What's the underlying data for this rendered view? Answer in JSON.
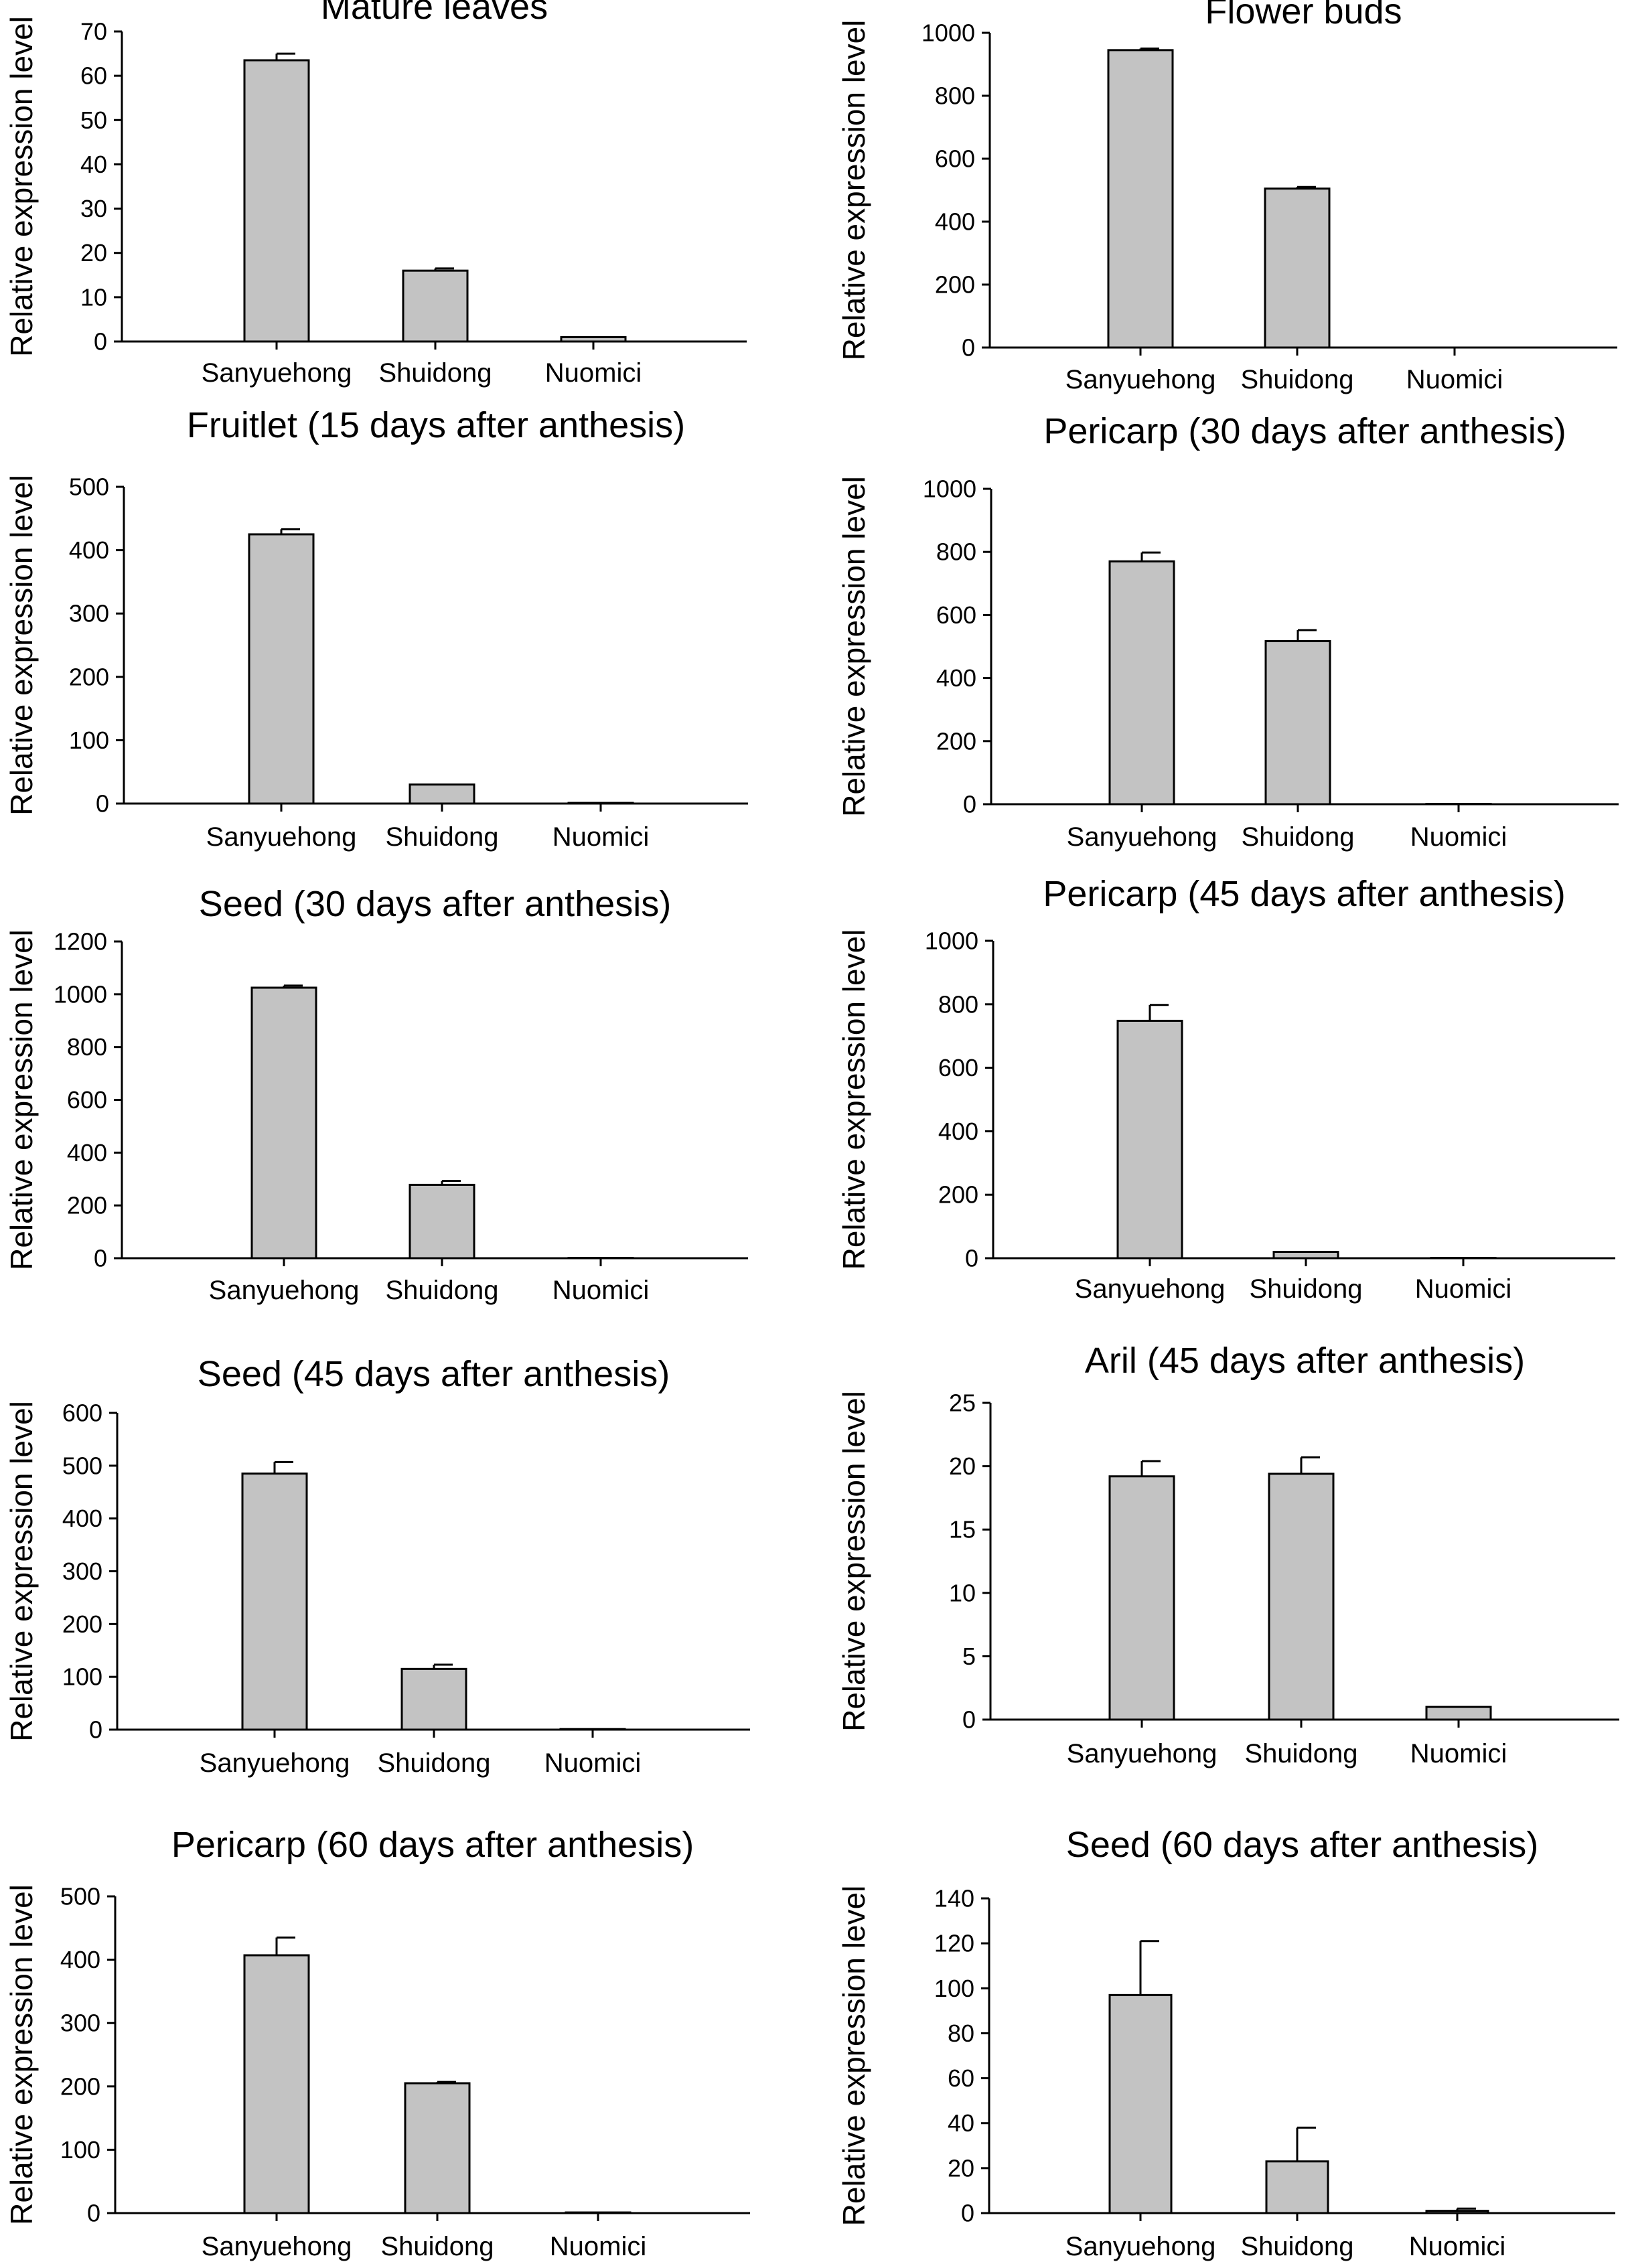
{
  "chart_data": [
    {
      "type": "bar",
      "title": "Mature leaves",
      "ylabel": "Relative expression level",
      "categories": [
        "Sanyuehong",
        "Shuidong",
        "Nuomici"
      ],
      "values": [
        63.5,
        16,
        1
      ],
      "errors": [
        1.5,
        0.5,
        0
      ],
      "ylim": [
        0,
        70
      ],
      "yticks": [
        0,
        10,
        20,
        30,
        40,
        50,
        60,
        70
      ]
    },
    {
      "type": "bar",
      "title": "Flower buds",
      "ylabel": "Relative expression level",
      "categories": [
        "Sanyuehong",
        "Shuidong",
        "Nuomici"
      ],
      "values": [
        945,
        505,
        0
      ],
      "errors": [
        5,
        5,
        0
      ],
      "ylim": [
        0,
        1000
      ],
      "yticks": [
        0,
        200,
        400,
        600,
        800,
        1000
      ]
    },
    {
      "type": "bar",
      "title": "Fruitlet (15 days after anthesis)",
      "ylabel": "Relative expression level",
      "categories": [
        "Sanyuehong",
        "Shuidong",
        "Nuomici"
      ],
      "values": [
        425,
        30,
        1
      ],
      "errors": [
        8,
        0,
        0
      ],
      "ylim": [
        0,
        500
      ],
      "yticks": [
        0,
        100,
        200,
        300,
        400,
        500
      ]
    },
    {
      "type": "bar",
      "title": "Pericarp (30 days after anthesis)",
      "ylabel": "Relative expression level",
      "categories": [
        "Sanyuehong",
        "Shuidong",
        "Nuomici"
      ],
      "values": [
        770,
        517,
        1
      ],
      "errors": [
        28,
        35,
        0
      ],
      "ylim": [
        0,
        1000
      ],
      "yticks": [
        0,
        200,
        400,
        600,
        800,
        1000
      ]
    },
    {
      "type": "bar",
      "title": "Seed (30 days after anthesis)",
      "ylabel": "Relative expression level",
      "categories": [
        "Sanyuehong",
        "Shuidong",
        "Nuomici"
      ],
      "values": [
        1025,
        278,
        1
      ],
      "errors": [
        8,
        15,
        0
      ],
      "ylim": [
        0,
        1200
      ],
      "yticks": [
        0,
        200,
        400,
        600,
        800,
        1000,
        1200
      ]
    },
    {
      "type": "bar",
      "title": "Pericarp (45 days after anthesis)",
      "ylabel": "Relative expression level",
      "categories": [
        "Sanyuehong",
        "Shuidong",
        "Nuomici"
      ],
      "values": [
        748,
        20,
        1
      ],
      "errors": [
        50,
        0,
        0
      ],
      "ylim": [
        0,
        1000
      ],
      "yticks": [
        0,
        200,
        400,
        600,
        800,
        1000
      ]
    },
    {
      "type": "bar",
      "title": "Seed (45 days after anthesis)",
      "ylabel": "Relative expression level",
      "categories": [
        "Sanyuehong",
        "Shuidong",
        "Nuomici"
      ],
      "values": [
        485,
        115,
        1
      ],
      "errors": [
        22,
        8,
        0
      ],
      "ylim": [
        0,
        600
      ],
      "yticks": [
        0,
        100,
        200,
        300,
        400,
        500,
        600
      ]
    },
    {
      "type": "bar",
      "title": "Aril (45 days after anthesis)",
      "ylabel": "Relative expression level",
      "categories": [
        "Sanyuehong",
        "Shuidong",
        "Nuomici"
      ],
      "values": [
        19.2,
        19.4,
        1
      ],
      "errors": [
        1.2,
        1.3,
        0
      ],
      "ylim": [
        0,
        25
      ],
      "yticks": [
        0,
        5,
        10,
        15,
        20,
        25
      ]
    },
    {
      "type": "bar",
      "title": "Pericarp (60 days after anthesis)",
      "ylabel": "Relative expression level",
      "categories": [
        "Sanyuehong",
        "Shuidong",
        "Nuomici"
      ],
      "values": [
        407,
        205,
        1
      ],
      "errors": [
        28,
        2,
        0
      ],
      "ylim": [
        0,
        500
      ],
      "yticks": [
        0,
        100,
        200,
        300,
        400,
        500
      ]
    },
    {
      "type": "bar",
      "title": "Seed (60 days after anthesis)",
      "ylabel": "Relative expression level",
      "categories": [
        "Sanyuehong",
        "Shuidong",
        "Nuomici"
      ],
      "values": [
        97,
        23,
        1
      ],
      "errors": [
        24,
        15,
        1
      ],
      "ylim": [
        0,
        140
      ],
      "yticks": [
        0,
        20,
        40,
        60,
        80,
        100,
        120,
        140
      ]
    }
  ]
}
